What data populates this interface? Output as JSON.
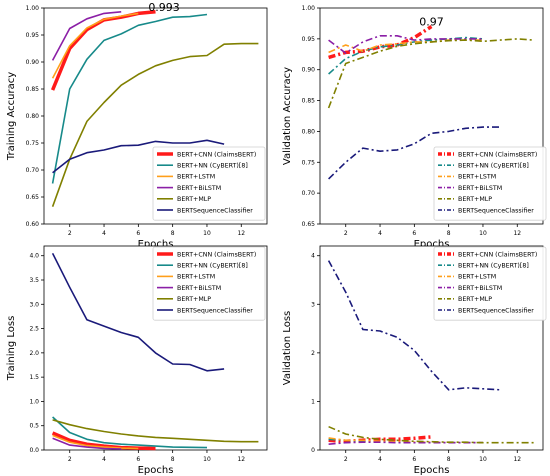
{
  "colors": {
    "cnn": "#ff1a1a",
    "nn": "#178a8a",
    "lstm": "#ff9f1a",
    "bilstm": "#8b1fa6",
    "mlp": "#808000",
    "seq": "#1a1a7a"
  },
  "chart_data": [
    {
      "type": "line",
      "xlabel": "Epochs",
      "ylabel": "Training Accuracy",
      "xlim": [
        0.5,
        13.5
      ],
      "ylim": [
        0.6,
        1.0
      ],
      "xticks": [
        2,
        4,
        6,
        8,
        10,
        12
      ],
      "yticks": [
        0.6,
        0.65,
        0.7,
        0.75,
        0.8,
        0.85,
        0.9,
        0.95,
        1.0
      ],
      "legend_position": "lower-right",
      "line_style": "solid",
      "annotation": {
        "text": "0.993",
        "x": 7.5,
        "y": 0.993,
        "color": "#ff1a1a"
      },
      "series": [
        {
          "name": "BERT+CNN (ClaimsBERT)",
          "color": "#ff1a1a",
          "width": 3.5,
          "x": [
            1,
            2,
            3,
            4,
            5,
            6,
            7
          ],
          "y": [
            0.848,
            0.925,
            0.96,
            0.978,
            0.983,
            0.99,
            0.993
          ]
        },
        {
          "name": "BERT+NN (CyBERT)[8]",
          "color": "#178a8a",
          "width": 1.6,
          "x": [
            1,
            2,
            3,
            4,
            5,
            6,
            7,
            8,
            9,
            10
          ],
          "y": [
            0.675,
            0.85,
            0.905,
            0.94,
            0.952,
            0.968,
            0.975,
            0.983,
            0.984,
            0.988
          ]
        },
        {
          "name": "BERT+LSTM",
          "color": "#ff9f1a",
          "width": 1.6,
          "x": [
            1,
            2,
            3,
            4,
            5,
            6
          ],
          "y": [
            0.87,
            0.93,
            0.963,
            0.979,
            0.985,
            0.99
          ]
        },
        {
          "name": "BERT+BiLSTM",
          "color": "#8b1fa6",
          "width": 1.6,
          "x": [
            1,
            2,
            3,
            4,
            5
          ],
          "y": [
            0.903,
            0.962,
            0.98,
            0.99,
            0.993
          ]
        },
        {
          "name": "BERT+MLP",
          "color": "#808000",
          "width": 1.6,
          "x": [
            1,
            2,
            3,
            4,
            5,
            6,
            7,
            8,
            9,
            10,
            11,
            12,
            13
          ],
          "y": [
            0.632,
            0.72,
            0.79,
            0.825,
            0.857,
            0.877,
            0.893,
            0.903,
            0.91,
            0.912,
            0.933,
            0.934,
            0.934
          ]
        },
        {
          "name": "BERTSequenceClassifier",
          "color": "#1a1a7a",
          "width": 1.6,
          "x": [
            1,
            2,
            3,
            4,
            5,
            6,
            7,
            8,
            9,
            10,
            11
          ],
          "y": [
            0.695,
            0.72,
            0.732,
            0.737,
            0.745,
            0.746,
            0.753,
            0.75,
            0.75,
            0.755,
            0.748
          ]
        }
      ]
    },
    {
      "type": "line",
      "xlabel": "Epochs",
      "ylabel": "Validation Accuracy",
      "xlim": [
        0.5,
        13.5
      ],
      "ylim": [
        0.65,
        1.0
      ],
      "xticks": [
        2,
        4,
        6,
        8,
        10,
        12
      ],
      "yticks": [
        0.65,
        0.7,
        0.75,
        0.8,
        0.85,
        0.9,
        0.95,
        1.0
      ],
      "legend_position": "lower-right",
      "line_style": "dashdot",
      "annotation": {
        "text": "0.97",
        "x": 7,
        "y": 0.97,
        "color": "#ff1a1a"
      },
      "series": [
        {
          "name": "BERT+CNN (ClaimsBERT)",
          "color": "#ff1a1a",
          "width": 3.5,
          "x": [
            1,
            2,
            3,
            4,
            5,
            6,
            7
          ],
          "y": [
            0.92,
            0.928,
            0.93,
            0.937,
            0.94,
            0.952,
            0.97
          ]
        },
        {
          "name": "BERT+NN (CyBERT)[8]",
          "color": "#178a8a",
          "width": 1.6,
          "x": [
            1,
            2,
            3,
            4,
            5,
            6,
            7,
            8,
            9,
            10
          ],
          "y": [
            0.893,
            0.918,
            0.93,
            0.937,
            0.94,
            0.945,
            0.948,
            0.95,
            0.952,
            0.95
          ]
        },
        {
          "name": "BERT+LSTM",
          "color": "#ff9f1a",
          "width": 1.6,
          "x": [
            1,
            2,
            3,
            4,
            5,
            6,
            7,
            8,
            9,
            10
          ],
          "y": [
            0.928,
            0.94,
            0.93,
            0.94,
            0.942,
            0.945,
            0.945,
            0.948,
            0.948,
            0.948
          ]
        },
        {
          "name": "BERT+BiLSTM",
          "color": "#8b1fa6",
          "width": 1.6,
          "x": [
            1,
            2,
            3,
            4,
            5,
            6,
            7,
            8,
            9,
            10
          ],
          "y": [
            0.948,
            0.927,
            0.945,
            0.955,
            0.955,
            0.948,
            0.95,
            0.95,
            0.95,
            0.95
          ]
        },
        {
          "name": "BERT+MLP",
          "color": "#808000",
          "width": 1.6,
          "x": [
            1,
            2,
            3,
            4,
            5,
            6,
            7,
            8,
            9,
            10,
            11,
            12,
            13
          ],
          "y": [
            0.838,
            0.91,
            0.92,
            0.93,
            0.938,
            0.942,
            0.945,
            0.947,
            0.948,
            0.946,
            0.948,
            0.95,
            0.948
          ]
        },
        {
          "name": "BERTSequenceClassifier",
          "color": "#1a1a7a",
          "width": 1.6,
          "x": [
            1,
            2,
            3,
            4,
            5,
            6,
            7,
            8,
            9,
            10,
            11
          ],
          "y": [
            0.723,
            0.75,
            0.773,
            0.768,
            0.77,
            0.78,
            0.797,
            0.8,
            0.805,
            0.807,
            0.807
          ]
        }
      ]
    },
    {
      "type": "line",
      "xlabel": "Epochs",
      "ylabel": "Training Loss",
      "xlim": [
        0.5,
        13.5
      ],
      "ylim": [
        0,
        4.2
      ],
      "xticks": [
        2,
        4,
        6,
        8,
        10,
        12
      ],
      "yticks": [
        0.0,
        0.5,
        1.0,
        1.5,
        2.0,
        2.5,
        3.0,
        3.5,
        4.0
      ],
      "legend_position": "upper-right",
      "line_style": "solid",
      "series": [
        {
          "name": "BERT+CNN (ClaimsBERT)",
          "color": "#ff1a1a",
          "width": 3.5,
          "x": [
            1,
            2,
            3,
            4,
            5,
            6,
            7
          ],
          "y": [
            0.35,
            0.2,
            0.12,
            0.08,
            0.05,
            0.04,
            0.03
          ]
        },
        {
          "name": "BERT+NN (CyBERT)[8]",
          "color": "#178a8a",
          "width": 1.6,
          "x": [
            1,
            2,
            3,
            4,
            5,
            6,
            7,
            8,
            9,
            10
          ],
          "y": [
            0.68,
            0.36,
            0.22,
            0.15,
            0.12,
            0.1,
            0.08,
            0.06,
            0.055,
            0.05
          ]
        },
        {
          "name": "BERT+LSTM",
          "color": "#ff9f1a",
          "width": 1.6,
          "x": [
            1,
            2,
            3,
            4,
            5,
            6
          ],
          "y": [
            0.3,
            0.16,
            0.09,
            0.06,
            0.04,
            0.03
          ]
        },
        {
          "name": "BERT+BiLSTM",
          "color": "#8b1fa6",
          "width": 1.6,
          "x": [
            1,
            2,
            3,
            4,
            5
          ],
          "y": [
            0.24,
            0.1,
            0.06,
            0.03,
            0.02
          ]
        },
        {
          "name": "BERT+MLP",
          "color": "#808000",
          "width": 1.6,
          "x": [
            1,
            2,
            3,
            4,
            5,
            6,
            7,
            8,
            9,
            10,
            11,
            12,
            13
          ],
          "y": [
            0.62,
            0.52,
            0.44,
            0.38,
            0.33,
            0.29,
            0.26,
            0.24,
            0.22,
            0.2,
            0.18,
            0.17,
            0.17
          ]
        },
        {
          "name": "BERTSequenceClassifier",
          "color": "#1a1a7a",
          "width": 1.6,
          "x": [
            1,
            2,
            3,
            4,
            5,
            6,
            7,
            8,
            9,
            10,
            11
          ],
          "y": [
            4.05,
            3.35,
            2.68,
            2.55,
            2.42,
            2.32,
            2.0,
            1.77,
            1.76,
            1.63,
            1.67
          ]
        }
      ]
    },
    {
      "type": "line",
      "xlabel": "Epochs",
      "ylabel": "Validation Loss",
      "xlim": [
        0.5,
        13.5
      ],
      "ylim": [
        0,
        4.2
      ],
      "xticks": [
        2,
        4,
        6,
        8,
        10,
        12
      ],
      "yticks": [
        0,
        1,
        2,
        3,
        4
      ],
      "legend_position": "upper-right",
      "line_style": "dashdot",
      "series": [
        {
          "name": "BERT+CNN (ClaimsBERT)",
          "color": "#ff1a1a",
          "width": 3.5,
          "x": [
            1,
            2,
            3,
            4,
            5,
            6,
            7
          ],
          "y": [
            0.2,
            0.18,
            0.2,
            0.22,
            0.22,
            0.24,
            0.27
          ]
        },
        {
          "name": "BERT+NN (CyBERT)[8]",
          "color": "#178a8a",
          "width": 1.6,
          "x": [
            1,
            2,
            3,
            4,
            5,
            6,
            7,
            8,
            9,
            10
          ],
          "y": [
            0.22,
            0.2,
            0.18,
            0.17,
            0.16,
            0.15,
            0.15,
            0.15,
            0.15,
            0.15
          ]
        },
        {
          "name": "BERT+LSTM",
          "color": "#ff9f1a",
          "width": 1.6,
          "x": [
            1,
            2,
            3,
            4,
            5,
            6,
            7,
            8,
            9,
            10
          ],
          "y": [
            0.25,
            0.2,
            0.2,
            0.18,
            0.17,
            0.16,
            0.16,
            0.15,
            0.15,
            0.15
          ]
        },
        {
          "name": "BERT+BiLSTM",
          "color": "#8b1fa6",
          "width": 1.6,
          "x": [
            1,
            2,
            3,
            4,
            5,
            6,
            7,
            8,
            9,
            10
          ],
          "y": [
            0.12,
            0.15,
            0.16,
            0.16,
            0.15,
            0.15,
            0.15,
            0.15,
            0.15,
            0.15
          ]
        },
        {
          "name": "BERT+MLP",
          "color": "#808000",
          "width": 1.6,
          "x": [
            1,
            2,
            3,
            4,
            5,
            6,
            7,
            8,
            9,
            10,
            11,
            12,
            13
          ],
          "y": [
            0.48,
            0.33,
            0.26,
            0.22,
            0.2,
            0.18,
            0.17,
            0.16,
            0.16,
            0.15,
            0.15,
            0.15,
            0.15
          ]
        },
        {
          "name": "BERTSequenceClassifier",
          "color": "#1a1a7a",
          "width": 1.6,
          "x": [
            1,
            2,
            3,
            4,
            5,
            6,
            7,
            8,
            9,
            10,
            11
          ],
          "y": [
            3.9,
            3.25,
            2.48,
            2.45,
            2.32,
            2.05,
            1.62,
            1.24,
            1.28,
            1.26,
            1.24
          ]
        }
      ]
    }
  ]
}
